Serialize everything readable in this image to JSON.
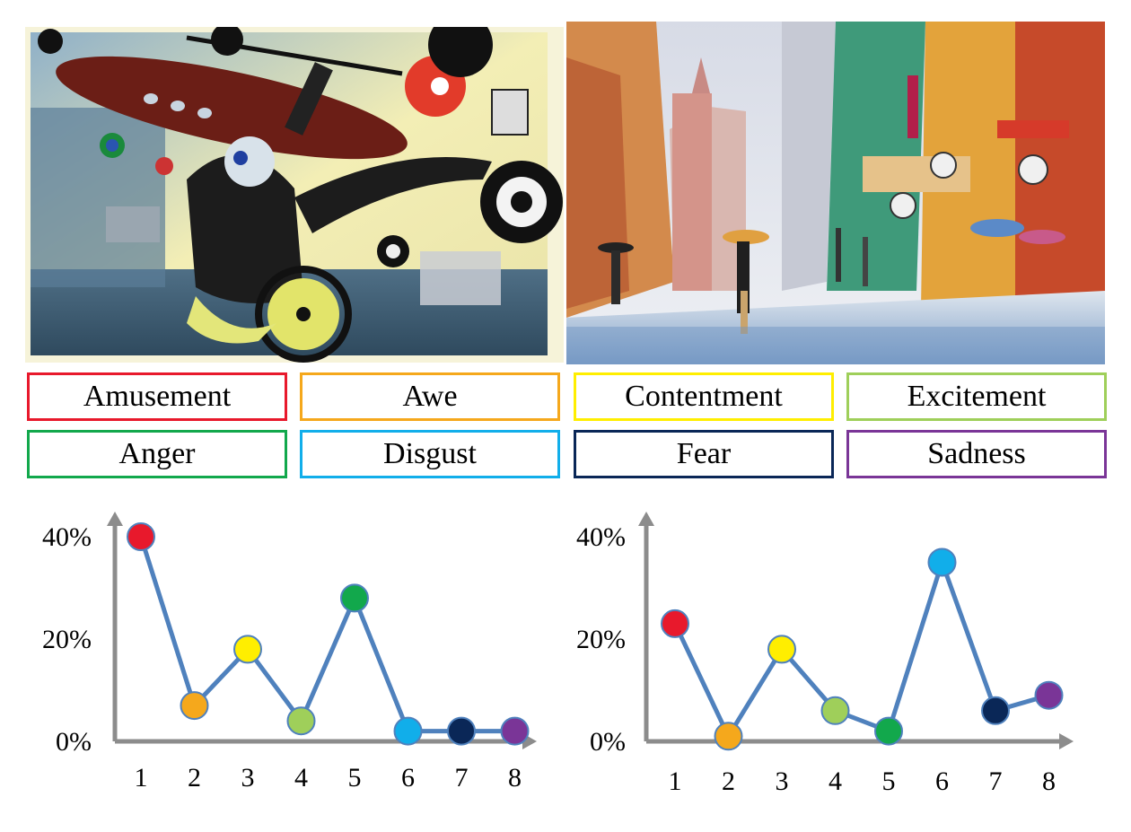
{
  "paintings": [
    {
      "name": "abstract-surreal-painting"
    },
    {
      "name": "rainy-street-painting"
    }
  ],
  "emotions": [
    {
      "label": "Amusement",
      "color": "#e8192c"
    },
    {
      "label": "Awe",
      "color": "#f5a81c"
    },
    {
      "label": "Contentment",
      "color": "#ffee00"
    },
    {
      "label": "Excitement",
      "color": "#9fcf5a"
    },
    {
      "label": "Anger",
      "color": "#12a84c"
    },
    {
      "label": "Disgust",
      "color": "#11aeea"
    },
    {
      "label": "Fear",
      "color": "#0a2757"
    },
    {
      "label": "Sadness",
      "color": "#7a3597"
    }
  ],
  "chart_data": [
    {
      "type": "line",
      "x": [
        "1",
        "2",
        "3",
        "4",
        "5",
        "6",
        "7",
        "8"
      ],
      "series": [
        {
          "values": [
            40,
            7,
            18,
            4,
            28,
            2,
            2,
            2
          ]
        }
      ],
      "yticks": [
        "0%",
        "20%",
        "40%"
      ],
      "ylim": [
        0,
        40
      ],
      "line_color": "#4f81bd",
      "marker_colors": [
        "#e8192c",
        "#f5a81c",
        "#ffee00",
        "#9fcf5a",
        "#12a84c",
        "#11aeea",
        "#0a2757",
        "#7a3597"
      ],
      "grid": false
    },
    {
      "type": "line",
      "x": [
        "1",
        "2",
        "3",
        "4",
        "5",
        "6",
        "7",
        "8"
      ],
      "series": [
        {
          "values": [
            23,
            1,
            18,
            6,
            2,
            35,
            6,
            9
          ]
        }
      ],
      "yticks": [
        "0%",
        "20%",
        "40%"
      ],
      "ylim": [
        0,
        40
      ],
      "line_color": "#4f81bd",
      "marker_colors": [
        "#e8192c",
        "#f5a81c",
        "#ffee00",
        "#9fcf5a",
        "#12a84c",
        "#11aeea",
        "#0a2757",
        "#7a3597"
      ],
      "grid": false
    }
  ]
}
